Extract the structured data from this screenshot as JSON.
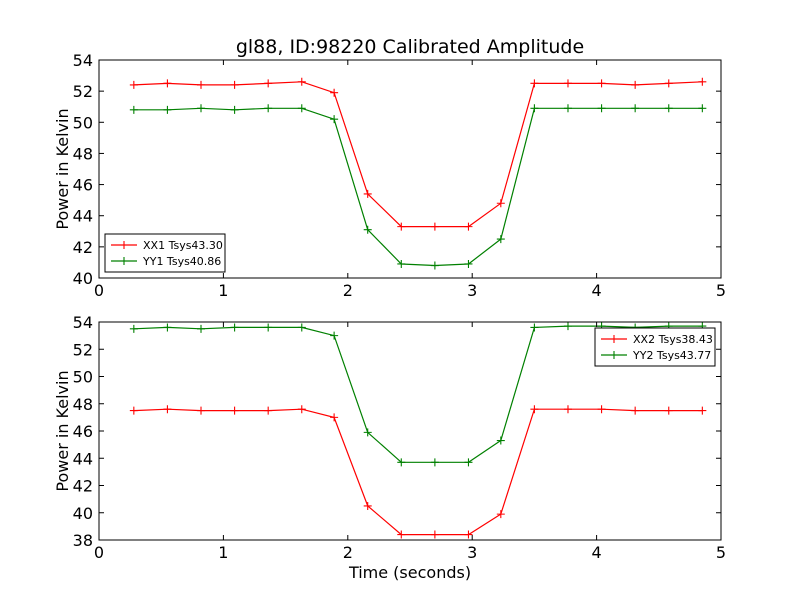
{
  "chart_data": [
    {
      "type": "line",
      "title": "gl88, ID:98220 Calibrated Amplitude",
      "xlabel": "",
      "ylabel": "Power in Kelvin",
      "xlim": [
        0,
        5
      ],
      "ylim": [
        40,
        54
      ],
      "xticks": [
        "0",
        "1",
        "2",
        "3",
        "4",
        "5"
      ],
      "yticks": [
        "40",
        "42",
        "44",
        "46",
        "48",
        "50",
        "52",
        "54"
      ],
      "grid": false,
      "legend_position": "lower-left",
      "series": [
        {
          "name": "XX1 Tsys43.30",
          "color": "#ff0000",
          "marker": "plus",
          "x": [
            0.28,
            0.55,
            0.82,
            1.09,
            1.36,
            1.63,
            1.89,
            2.16,
            2.43,
            2.7,
            2.97,
            3.23,
            3.5,
            3.77,
            4.04,
            4.31,
            4.58,
            4.85
          ],
          "y": [
            52.4,
            52.5,
            52.4,
            52.4,
            52.5,
            52.6,
            51.9,
            45.4,
            43.3,
            43.3,
            43.3,
            44.8,
            52.5,
            52.5,
            52.5,
            52.4,
            52.5,
            52.6
          ]
        },
        {
          "name": "YY1 Tsys40.86",
          "color": "#008000",
          "marker": "plus",
          "x": [
            0.28,
            0.55,
            0.82,
            1.09,
            1.36,
            1.63,
            1.89,
            2.16,
            2.43,
            2.7,
            2.97,
            3.23,
            3.5,
            3.77,
            4.04,
            4.31,
            4.58,
            4.85
          ],
          "y": [
            50.8,
            50.8,
            50.9,
            50.8,
            50.9,
            50.9,
            50.2,
            43.1,
            40.9,
            40.8,
            40.9,
            42.5,
            50.9,
            50.9,
            50.9,
            50.9,
            50.9,
            50.9
          ]
        }
      ]
    },
    {
      "type": "line",
      "title": "",
      "xlabel": "Time (seconds)",
      "ylabel": "Power in Kelvin",
      "xlim": [
        0,
        5
      ],
      "ylim": [
        38,
        54
      ],
      "xticks": [
        "0",
        "1",
        "2",
        "3",
        "4",
        "5"
      ],
      "yticks": [
        "38",
        "40",
        "42",
        "44",
        "46",
        "48",
        "50",
        "52",
        "54"
      ],
      "grid": false,
      "legend_position": "upper-right",
      "series": [
        {
          "name": "XX2 Tsys38.43",
          "color": "#ff0000",
          "marker": "plus",
          "x": [
            0.28,
            0.55,
            0.82,
            1.09,
            1.36,
            1.63,
            1.89,
            2.16,
            2.43,
            2.7,
            2.97,
            3.23,
            3.5,
            3.77,
            4.04,
            4.31,
            4.58,
            4.85
          ],
          "y": [
            47.5,
            47.6,
            47.5,
            47.5,
            47.5,
            47.6,
            47.0,
            40.5,
            38.4,
            38.4,
            38.4,
            39.9,
            47.6,
            47.6,
            47.6,
            47.5,
            47.5,
            47.5
          ]
        },
        {
          "name": "YY2 Tsys43.77",
          "color": "#008000",
          "marker": "plus",
          "x": [
            0.28,
            0.55,
            0.82,
            1.09,
            1.36,
            1.63,
            1.89,
            2.16,
            2.43,
            2.7,
            2.97,
            3.23,
            3.5,
            3.77,
            4.04,
            4.31,
            4.58,
            4.85
          ],
          "y": [
            53.5,
            53.6,
            53.5,
            53.6,
            53.6,
            53.6,
            53.0,
            45.9,
            43.7,
            43.7,
            43.7,
            45.3,
            53.6,
            53.7,
            53.7,
            53.6,
            53.7,
            53.7
          ]
        }
      ]
    }
  ]
}
